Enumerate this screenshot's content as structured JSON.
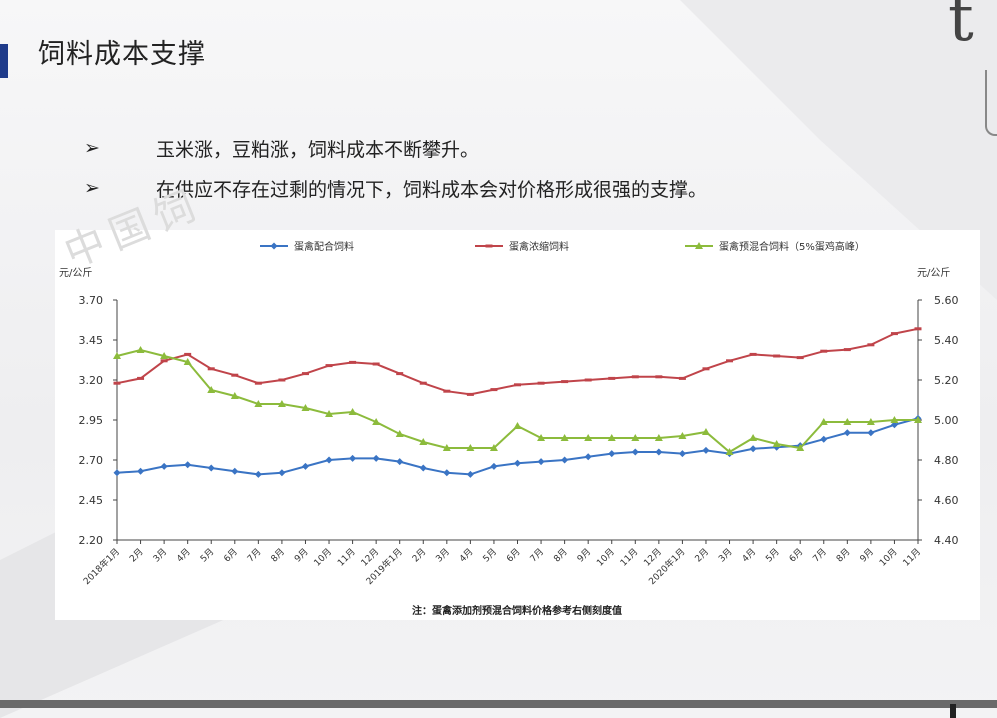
{
  "slide": {
    "title": "饲料成本支撑",
    "corner_letter": "t",
    "bullets": [
      {
        "marker": "➢",
        "text": "玉米涨，豆粕涨，饲料成本不断攀升。"
      },
      {
        "marker": "➢",
        "text": "在供应不存在过剩的情况下，饲料成本会对价格形成很强的支撑。"
      }
    ]
  },
  "chart_data": {
    "type": "line",
    "title": "",
    "watermark": "中国饲",
    "left_unit": "元/公斤",
    "right_unit": "元/公斤",
    "note": "注：蛋禽添加剂预混合饲料价格参考右侧刻度值",
    "left_axis": {
      "ylim": [
        2.2,
        3.7
      ],
      "ticks": [
        "2.20",
        "2.45",
        "2.70",
        "2.95",
        "3.20",
        "3.45",
        "3.70"
      ]
    },
    "right_axis": {
      "ylim": [
        4.4,
        5.6
      ],
      "ticks": [
        "4.40",
        "4.60",
        "4.80",
        "5.00",
        "5.20",
        "5.40",
        "5.60"
      ]
    },
    "legend_position": "top",
    "grid": false,
    "categories": [
      "2018年1月",
      "2月",
      "3月",
      "4月",
      "5月",
      "6月",
      "7月",
      "8月",
      "9月",
      "10月",
      "11月",
      "12月",
      "2019年1月",
      "2月",
      "3月",
      "4月",
      "5月",
      "6月",
      "7月",
      "8月",
      "9月",
      "10月",
      "11月",
      "12月",
      "2020年1月",
      "2月",
      "3月",
      "4月",
      "5月",
      "6月",
      "7月",
      "8月",
      "9月",
      "10月",
      "11月"
    ],
    "series": [
      {
        "name": "蛋禽配合饲料",
        "axis": "left",
        "color": "#3a74c4",
        "marker": "diamond",
        "values": [
          2.62,
          2.63,
          2.66,
          2.67,
          2.65,
          2.63,
          2.61,
          2.62,
          2.66,
          2.7,
          2.71,
          2.71,
          2.69,
          2.65,
          2.62,
          2.61,
          2.66,
          2.68,
          2.69,
          2.7,
          2.72,
          2.74,
          2.75,
          2.75,
          2.74,
          2.76,
          2.74,
          2.77,
          2.78,
          2.79,
          2.83,
          2.87,
          2.87,
          2.92,
          2.96
        ]
      },
      {
        "name": "蛋禽浓缩饲料",
        "axis": "left",
        "color": "#c0444a",
        "marker": "dash",
        "values": [
          3.18,
          3.21,
          3.32,
          3.36,
          3.27,
          3.23,
          3.18,
          3.2,
          3.24,
          3.29,
          3.31,
          3.3,
          3.24,
          3.18,
          3.13,
          3.11,
          3.14,
          3.17,
          3.18,
          3.19,
          3.2,
          3.21,
          3.22,
          3.22,
          3.21,
          3.27,
          3.32,
          3.36,
          3.35,
          3.34,
          3.38,
          3.39,
          3.42,
          3.49,
          3.52
        ]
      },
      {
        "name": "蛋禽预混合饲料（5%蛋鸡高峰）",
        "axis": "right",
        "color": "#8cbb3c",
        "marker": "triangle",
        "values": [
          5.32,
          5.35,
          5.32,
          5.29,
          5.15,
          5.12,
          5.08,
          5.08,
          5.06,
          5.03,
          5.04,
          4.99,
          4.93,
          4.89,
          4.86,
          4.86,
          4.86,
          4.97,
          4.91,
          4.91,
          4.91,
          4.91,
          4.91,
          4.91,
          4.92,
          4.94,
          4.84,
          4.91,
          4.88,
          4.86,
          4.99,
          4.99,
          4.99,
          5.0,
          5.0
        ]
      }
    ]
  }
}
